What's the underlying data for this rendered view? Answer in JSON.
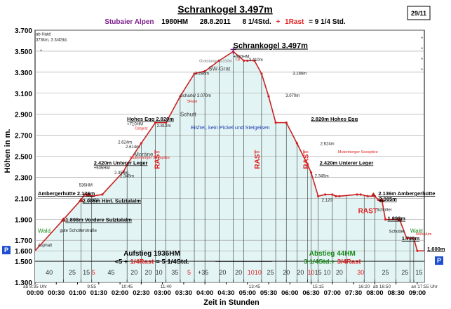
{
  "chart_data": {
    "type": "area",
    "title": "Schrankogel 3.497m",
    "subtitle": {
      "region": "Stubaier Alpen",
      "elevation_gain": "1980HM",
      "date": "28.8.2011",
      "hours": "8 1/4Std.",
      "plus": "+",
      "rest": "1Rast",
      "total": "= 9 1/4 Std."
    },
    "page_number": "29/11",
    "ylabel": "Höhen in m.",
    "xlabel": "Zeit in Stunden",
    "ylim": [
      1300,
      3700
    ],
    "xlim": [
      0,
      550
    ],
    "y_ticks": [
      1300,
      1500,
      1600,
      1700,
      1900,
      2100,
      2300,
      2500,
      2700,
      2900,
      3100,
      3300,
      3500,
      3700
    ],
    "y_tick_labels": [
      "1.300",
      "1.500",
      "1.600",
      "1.700",
      "1.900",
      "2.100",
      "2.300",
      "2.500",
      "2.700",
      "2.900",
      "3.100",
      "3.300",
      "3.500",
      "3.700"
    ],
    "x_tick_labels": [
      "00:00",
      "00:30",
      "01:00",
      "01:30",
      "02:00",
      "02:30",
      "03:00",
      "03:30",
      "04:00",
      "04:30",
      "05:00",
      "05:30",
      "06:00",
      "06:30",
      "07:00",
      "07:30",
      "08:00",
      "08:30",
      "09:00"
    ],
    "x_clock_labels": [
      {
        "t": 0,
        "text": "ab 8:35 Uhr"
      },
      {
        "t": 80,
        "text": "9:55"
      },
      {
        "t": 130,
        "text": "10:45"
      },
      {
        "t": 185,
        "text": "11:40"
      },
      {
        "t": 310,
        "text": "13:45"
      },
      {
        "t": 400,
        "text": "15:15"
      },
      {
        "t": 465,
        "text": "16:20"
      },
      {
        "t": 490,
        "text": "ab 16:50"
      },
      {
        "t": 550,
        "text": "an 17:55 Uhr"
      }
    ],
    "profile": {
      "x": [
        0,
        40,
        65,
        70,
        75,
        80,
        95,
        125,
        130,
        150,
        170,
        185,
        205,
        225,
        240,
        260,
        280,
        295,
        300,
        310,
        320,
        330,
        340,
        355,
        370,
        385,
        390,
        400,
        410,
        420,
        425,
        430,
        455,
        460,
        470,
        480,
        485,
        490,
        495,
        515,
        525,
        535,
        540,
        550
      ],
      "y": [
        1600,
        1898,
        2085,
        2136,
        2136,
        2120,
        2136,
        2355,
        2420,
        2624,
        2820,
        2820,
        3070,
        3286,
        3310,
        3410,
        3497,
        3410,
        3410,
        3410,
        3286,
        3070,
        2820,
        2820,
        2624,
        2420,
        2345,
        2120,
        2136,
        2136,
        2120,
        2120,
        2136,
        2136,
        2120,
        2120,
        2085,
        2085,
        1898,
        1898,
        1720,
        1720,
        1600,
        1600
      ]
    },
    "segment_durations": [
      {
        "label": "40",
        "from": 0,
        "to": 40,
        "color": "#333333"
      },
      {
        "label": "25",
        "from": 40,
        "to": 65,
        "color": "#333333"
      },
      {
        "label": "15",
        "from": 65,
        "to": 80,
        "color": "#333333"
      },
      {
        "label": "5",
        "from": 80,
        "to": 85,
        "color": "#e02020"
      },
      {
        "label": "45",
        "from": 85,
        "to": 130,
        "color": "#333333"
      },
      {
        "label": "20",
        "from": 130,
        "to": 150,
        "color": "#333333"
      },
      {
        "label": "20",
        "from": 150,
        "to": 170,
        "color": "#333333"
      },
      {
        "label": "10",
        "from": 170,
        "to": 180,
        "color": "#333333"
      },
      {
        "label": "35",
        "from": 180,
        "to": 215,
        "color": "#333333"
      },
      {
        "label": "5",
        "from": 215,
        "to": 220,
        "color": "#e02020"
      },
      {
        "label": "+35",
        "from": 220,
        "to": 255,
        "color": "#333333"
      },
      {
        "label": "20",
        "from": 255,
        "to": 275,
        "color": "#333333"
      },
      {
        "label": "20",
        "from": 275,
        "to": 300,
        "color": "#333333"
      },
      {
        "label": "10",
        "from": 300,
        "to": 310,
        "color": "#e02020"
      },
      {
        "label": "10",
        "from": 310,
        "to": 320,
        "color": "#e02020"
      },
      {
        "label": "25",
        "from": 320,
        "to": 345,
        "color": "#333333"
      },
      {
        "label": "20",
        "from": 345,
        "to": 365,
        "color": "#333333"
      },
      {
        "label": "20",
        "from": 365,
        "to": 385,
        "color": "#333333"
      },
      {
        "label": "10",
        "from": 385,
        "to": 395,
        "color": "#e02020"
      },
      {
        "label": "15",
        "from": 395,
        "to": 405,
        "color": "#333333"
      },
      {
        "label": "10",
        "from": 405,
        "to": 420,
        "color": "#333333"
      },
      {
        "label": "20",
        "from": 420,
        "to": 440,
        "color": "#333333"
      },
      {
        "label": "30",
        "from": 440,
        "to": 480,
        "color": "#e02020"
      },
      {
        "label": "25",
        "from": 480,
        "to": 510,
        "color": "#333333"
      },
      {
        "label": "25",
        "from": 510,
        "to": 535,
        "color": "#333333"
      },
      {
        "label": "15",
        "from": 535,
        "to": 550,
        "color": "#333333"
      }
    ],
    "vertical_markers": [
      40,
      65,
      80,
      130,
      150,
      170,
      185,
      205,
      225,
      240,
      260,
      280,
      295,
      320,
      340,
      355,
      370,
      385,
      390,
      400,
      420,
      440,
      465,
      480,
      510,
      530,
      535
    ],
    "rest_markers": [
      {
        "t": 176,
        "y": 2470,
        "text": "RAST"
      },
      {
        "t": 317,
        "y": 2470,
        "text": "RAST"
      },
      {
        "t": 386,
        "y": 2470,
        "text": "RAST"
      },
      {
        "t": 470,
        "y": 1960,
        "text": "RAST"
      }
    ],
    "place_labels": [
      {
        "t": 280,
        "y": 3530,
        "text": "Schrankogel 3.497m",
        "style": "title"
      },
      {
        "t": 280,
        "y": 3435,
        "text": "+690HM",
        "style": "small"
      },
      {
        "t": 4,
        "y": 2128,
        "text": "Ambergerhütte 2.136m",
        "style": "bold"
      },
      {
        "t": 67,
        "y": 2060,
        "text": "2.085m Hint. Sulztalalm",
        "style": "bold"
      },
      {
        "t": 43,
        "y": 1878,
        "text": "1.898m Vordere Sulztalalm",
        "style": "bold"
      },
      {
        "t": 62,
        "y": 2213,
        "text": "536HM",
        "style": "small"
      },
      {
        "t": 83,
        "y": 2420,
        "text": "2.420m Unterer Leger",
        "style": "bold"
      },
      {
        "t": 83,
        "y": 2375,
        "text": "+505HM",
        "style": "small"
      },
      {
        "t": 130,
        "y": 2838,
        "text": "Hohes Egg 2.820m",
        "style": "bold"
      },
      {
        "t": 130,
        "y": 2795,
        "text": "+710HM",
        "style": "small"
      },
      {
        "t": 390,
        "y": 2838,
        "text": "2.820m Hohes Egg",
        "style": "bold"
      },
      {
        "t": 402,
        "y": 2420,
        "text": "2.420m Unterer Leger",
        "style": "bold"
      },
      {
        "t": 485,
        "y": 2128,
        "text": "2.136m Ambergerhütte",
        "style": "bold"
      },
      {
        "t": 554,
        "y": 1600,
        "text": "1.600m",
        "style": "bold"
      },
      {
        "t": 205,
        "y": 3066,
        "text": "Scharte/ 3.070m",
        "style": "small"
      },
      {
        "t": 226,
        "y": 3276,
        "text": "3.286m",
        "style": "small"
      },
      {
        "t": 364,
        "y": 3276,
        "text": "3.286m",
        "style": "small"
      },
      {
        "t": 302,
        "y": 3405,
        "text": "3.410m",
        "style": "small"
      },
      {
        "t": 354,
        "y": 3066,
        "text": "3.070m",
        "style": "small"
      },
      {
        "t": 117,
        "y": 2622,
        "text": "2.624m",
        "style": "small"
      },
      {
        "t": 403,
        "y": 2608,
        "text": "2.624m",
        "style": "small"
      },
      {
        "t": 128,
        "y": 2578,
        "text": "2.614m",
        "style": "small"
      },
      {
        "t": 172,
        "y": 2778,
        "text": "2.813m",
        "style": "small"
      },
      {
        "t": 112,
        "y": 2330,
        "text": "2.355m",
        "style": "small"
      },
      {
        "t": 120,
        "y": 2298,
        "text": "2.345m",
        "style": "small"
      },
      {
        "t": 395,
        "y": 2298,
        "text": "2.345m",
        "style": "small"
      },
      {
        "t": 75,
        "y": 2070,
        "text": "2.120",
        "style": "small"
      },
      {
        "t": 405,
        "y": 2070,
        "text": "2.120",
        "style": "small"
      },
      {
        "t": 486,
        "y": 2075,
        "text": "2.085m",
        "style": "bold"
      },
      {
        "t": 498,
        "y": 1890,
        "text": "1.898m",
        "style": "bold"
      },
      {
        "t": 518,
        "y": 1700,
        "text": "1.720m",
        "style": "bold"
      },
      {
        "t": 245,
        "y": 3316,
        "text": "SW-Grat",
        "style": "medium"
      },
      {
        "t": 205,
        "y": 2880,
        "text": "Schutt",
        "style": "medium"
      },
      {
        "t": 140,
        "y": 2500,
        "text": "Moräne",
        "style": "medium"
      },
      {
        "t": 220,
        "y": 2757,
        "text": "Eisfrei, kein Pickel und Steigeisen",
        "style": "blue"
      },
      {
        "t": 35,
        "y": 1780,
        "text": "gute Schotterstraße",
        "style": "small"
      },
      {
        "t": 4,
        "y": 1640,
        "text": "Asphalt",
        "style": "small"
      },
      {
        "t": 4,
        "y": 1772,
        "text": "Wald",
        "style": "green"
      },
      {
        "t": 530,
        "y": 1772,
        "text": "Wald",
        "style": "green"
      },
      {
        "t": 482,
        "y": 1980,
        "text": "Schotter",
        "style": "small"
      },
      {
        "t": 500,
        "y": 1770,
        "text": "Schotter",
        "style": "small"
      },
      {
        "t": 538,
        "y": 1748,
        "text": "Nissl Alm",
        "style": "smallred"
      },
      {
        "t": 141,
        "y": 2755,
        "text": "Ostgrat",
        "style": "smallred"
      },
      {
        "t": 215,
        "y": 3010,
        "text": "5Rast",
        "style": "smallred"
      },
      {
        "t": 232,
        "y": 3396,
        "text": "Gratstange 3.310m",
        "style": "smallgray"
      },
      {
        "t": 134,
        "y": 2475,
        "text": "Mutenberger Seespitze",
        "style": "smallred"
      },
      {
        "t": 428,
        "y": 2530,
        "text": "Mutenberger Seespitze",
        "style": "smallred"
      },
      {
        "t": 283,
        "y": 3410,
        "text": "I-8",
        "style": "smallred"
      },
      {
        "t": 1,
        "y": 3650,
        "text": "ab Haid:",
        "style": "small"
      },
      {
        "t": 1,
        "y": 3595,
        "text": "373km, 3 3/4Std.",
        "style": "small"
      }
    ],
    "summary": {
      "ascent_title": "Aufstieg 1936HM",
      "ascent_formula_a": "<5 +",
      "ascent_formula_b": "1/4Rast",
      "ascent_formula_c": "= 5 1/4Std.",
      "descent_title": "Abstieg 44HM",
      "descent_formula_a": "3 1/4Std.+",
      "descent_formula_b": "3/4Rast"
    },
    "markers": {
      "left_p": "P",
      "right_p": "P"
    },
    "colors": {
      "fill": "#e3f4f4",
      "line": "#cc2222",
      "accent_red": "#e02020",
      "green": "#1a8a1a",
      "purple": "#7a1f8a",
      "blue": "#1a3fb4"
    }
  }
}
